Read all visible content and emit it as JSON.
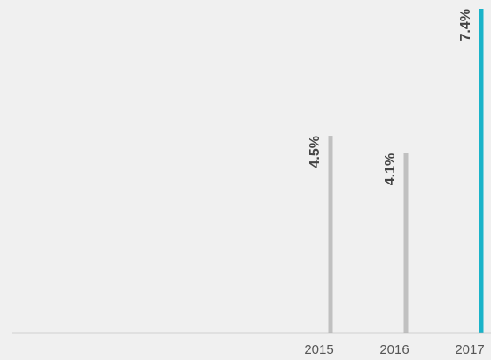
{
  "chart_data": {
    "type": "bar",
    "categories": [
      "2015",
      "2016",
      "2017"
    ],
    "values": [
      4.5,
      4.1,
      7.4
    ],
    "value_labels": [
      "4.5%",
      "4.1%",
      "7.4%"
    ],
    "colors": [
      "#c0c0c0",
      "#c0c0c0",
      "#1ab3c9"
    ]
  }
}
